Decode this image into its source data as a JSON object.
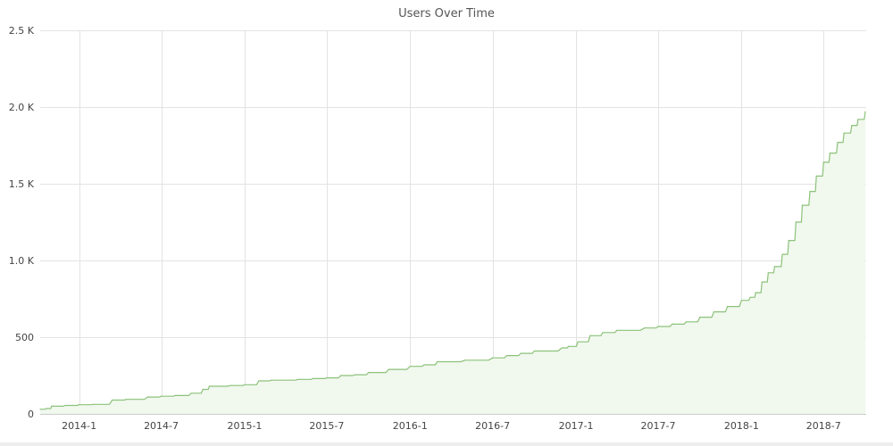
{
  "chart_data": {
    "type": "area",
    "title": "Users Over Time",
    "xlabel": "",
    "ylabel": "",
    "grid": true,
    "ylim": [
      0,
      2500
    ],
    "y_ticks": [
      0,
      500,
      1000,
      1500,
      2000,
      2500
    ],
    "y_tick_labels": [
      "0",
      "500",
      "1.0 K",
      "1.5 K",
      "2.0 K",
      "2.5 K"
    ],
    "x_range": [
      "2013-10-07",
      "2018-10-03"
    ],
    "x_ticks": [
      "2014-01-01",
      "2014-07-01",
      "2015-01-01",
      "2015-07-01",
      "2016-01-01",
      "2016-07-01",
      "2017-01-01",
      "2017-07-01",
      "2018-01-01",
      "2018-07-01"
    ],
    "x_tick_labels": [
      "2014-1",
      "2014-7",
      "2015-1",
      "2015-7",
      "2016-1",
      "2016-7",
      "2017-1",
      "2017-7",
      "2018-1",
      "2018-7"
    ],
    "colors": {
      "line": "#8cc27a",
      "fill": "#f1f8ee"
    },
    "series": [
      {
        "x": [
          "2013-10-07",
          "2013-10-20",
          "2013-11-01",
          "2013-12-01",
          "2014-01-01",
          "2014-02-01",
          "2014-03-15",
          "2014-04-15",
          "2014-06-01",
          "2014-07-01",
          "2014-08-01",
          "2014-09-05",
          "2014-10-01",
          "2014-10-15",
          "2014-12-01",
          "2015-01-01",
          "2015-02-01",
          "2015-03-01",
          "2015-05-01",
          "2015-06-01",
          "2015-07-01",
          "2015-08-01",
          "2015-09-01",
          "2015-10-01",
          "2015-11-15",
          "2016-01-01",
          "2016-02-01",
          "2016-03-01",
          "2016-05-01",
          "2016-07-01",
          "2016-08-01",
          "2016-09-01",
          "2016-10-01",
          "2016-12-01",
          "2016-12-15",
          "2017-01-05",
          "2017-02-01",
          "2017-03-01",
          "2017-04-01",
          "2017-06-01",
          "2017-07-01",
          "2017-08-01",
          "2017-09-01",
          "2017-10-01",
          "2017-11-01",
          "2017-12-01",
          "2018-01-01",
          "2018-01-20",
          "2018-02-01",
          "2018-02-15",
          "2018-03-01",
          "2018-03-15",
          "2018-04-01",
          "2018-04-15",
          "2018-05-01",
          "2018-05-15",
          "2018-06-01",
          "2018-06-15",
          "2018-07-01",
          "2018-07-15",
          "2018-08-01",
          "2018-08-15",
          "2018-09-01",
          "2018-09-15",
          "2018-10-01"
        ],
        "values": [
          30,
          35,
          50,
          55,
          60,
          62,
          90,
          95,
          110,
          115,
          120,
          135,
          160,
          180,
          185,
          190,
          215,
          220,
          225,
          230,
          235,
          250,
          255,
          270,
          290,
          310,
          320,
          340,
          350,
          365,
          380,
          395,
          410,
          430,
          440,
          470,
          510,
          530,
          545,
          560,
          570,
          585,
          600,
          630,
          665,
          700,
          740,
          760,
          790,
          860,
          920,
          960,
          1040,
          1130,
          1250,
          1360,
          1450,
          1550,
          1640,
          1700,
          1770,
          1830,
          1880,
          1920,
          1970
        ]
      }
    ]
  }
}
